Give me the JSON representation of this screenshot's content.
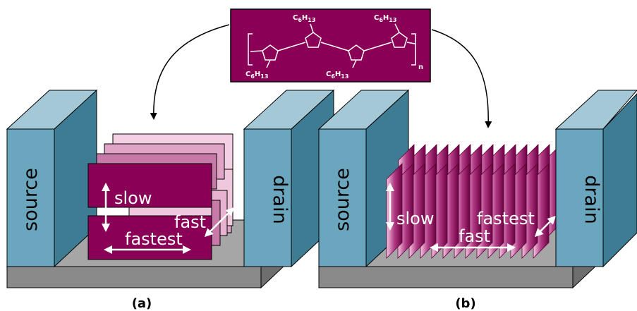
{
  "molecule": {
    "groups": [
      "C6H13",
      "C6H13",
      "C6H13",
      "C6H13"
    ],
    "repeat": "n"
  },
  "panel_a": {
    "caption": "(a)",
    "source_label": "source",
    "drain_label": "drain",
    "arrows": {
      "slow": "slow",
      "fastest": "fastest",
      "fast": "fast"
    }
  },
  "panel_b": {
    "caption": "(b)",
    "source_label": "source",
    "drain_label": "drain",
    "arrows": {
      "slow": "slow",
      "fastest": "fastest",
      "fast": "fast"
    }
  },
  "colors": {
    "polymer": "#8b0057",
    "electrode_front": "#6aa6bd",
    "electrode_side": "#3e7c94",
    "electrode_top": "#a5c8d6",
    "substrate_top": "#a6a6a6",
    "substrate_front": "#8a8a8a"
  }
}
